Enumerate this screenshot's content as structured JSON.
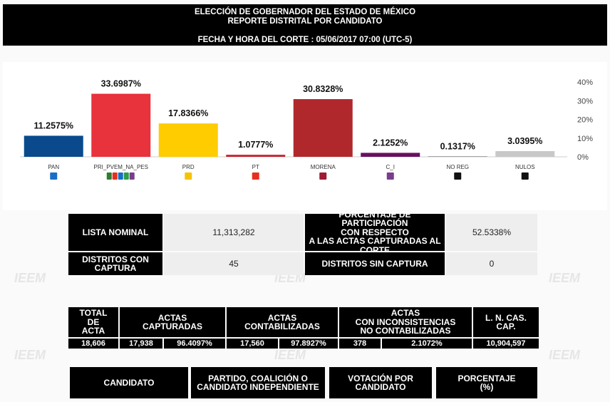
{
  "header": {
    "line1": "ELECCIÓN DE GOBERNADOR DEL ESTADO DE MÉXICO",
    "line2": "REPORTE DISTRITAL POR CANDIDATO",
    "line3": "FECHA Y HORA DEL CORTE : 05/06/2017 07:00 (UTC-5)"
  },
  "watermark_text": "IEEM",
  "chart_data": {
    "type": "bar",
    "categories": [
      "PAN",
      "PRI_PVEM_NA_PES",
      "PRD",
      "PT",
      "MORENA",
      "C_I",
      "NO REG",
      "NULOS"
    ],
    "values": [
      11.2575,
      33.6987,
      17.8366,
      1.0777,
      30.8328,
      2.1252,
      0.1317,
      3.0395
    ],
    "value_labels": [
      "11.2575%",
      "33.6987%",
      "17.8366%",
      "1.0777%",
      "30.8328%",
      "2.1252%",
      "0.1317%",
      "3.0395%"
    ],
    "colors": [
      "#0a4a8c",
      "#e8323c",
      "#ffcc00",
      "#c8202a",
      "#b0282c",
      "#6a1060",
      "#111111",
      "#c8c8c8"
    ],
    "y_ticks": [
      "0%",
      "10%",
      "20%",
      "30%",
      "40%"
    ],
    "ylim": [
      0,
      40
    ],
    "icon_colors": [
      "#1a6fc4",
      "#2e7d32",
      "#f5c400",
      "#e53020",
      "#9e1b32",
      "#7a3c8c",
      "#111111",
      "#111111"
    ]
  },
  "summary": {
    "lista_nominal_label": "LISTA NOMINAL",
    "lista_nominal_value": "11,313,282",
    "participacion_label": [
      "PORCENTAJE DE PARTICIPACIÓN",
      "CON RESPECTO",
      "A LAS ACTAS CAPTURADAS AL",
      "CORTE"
    ],
    "participacion_value": "52.5338%",
    "distritos_con_label": [
      "DISTRITOS CON",
      "CAPTURA"
    ],
    "distritos_con_value": "45",
    "distritos_sin_label": "DISTRITOS SIN CAPTURA",
    "distritos_sin_value": "0"
  },
  "actas": {
    "total_label": [
      "TOTAL",
      "DE",
      "ACTA"
    ],
    "capturadas_label": [
      "ACTAS",
      "CAPTURADAS"
    ],
    "contabilizadas_label": [
      "ACTAS",
      "CONTABILIZADAS"
    ],
    "inconsistencias_label": [
      "ACTAS",
      "CON INCONSISTENCIAS",
      "NO CONTABILIZADAS"
    ],
    "lncas_label": [
      "L. N. CAS.",
      "CAP."
    ],
    "values": [
      "18,606",
      "17,938",
      "96.4097%",
      "17,560",
      "97.8927%",
      "378",
      "2.1072%",
      "10,904,597"
    ]
  },
  "columns": {
    "candidato": "CANDIDATO",
    "partido": [
      "PARTIDO, COALICIÓN O",
      "CANDIDATO INDEPENDIENTE"
    ],
    "votacion": [
      "VOTACIÓN POR",
      "CANDIDATO"
    ],
    "porcentaje": [
      "PORCENTAJE",
      "(%)"
    ]
  }
}
